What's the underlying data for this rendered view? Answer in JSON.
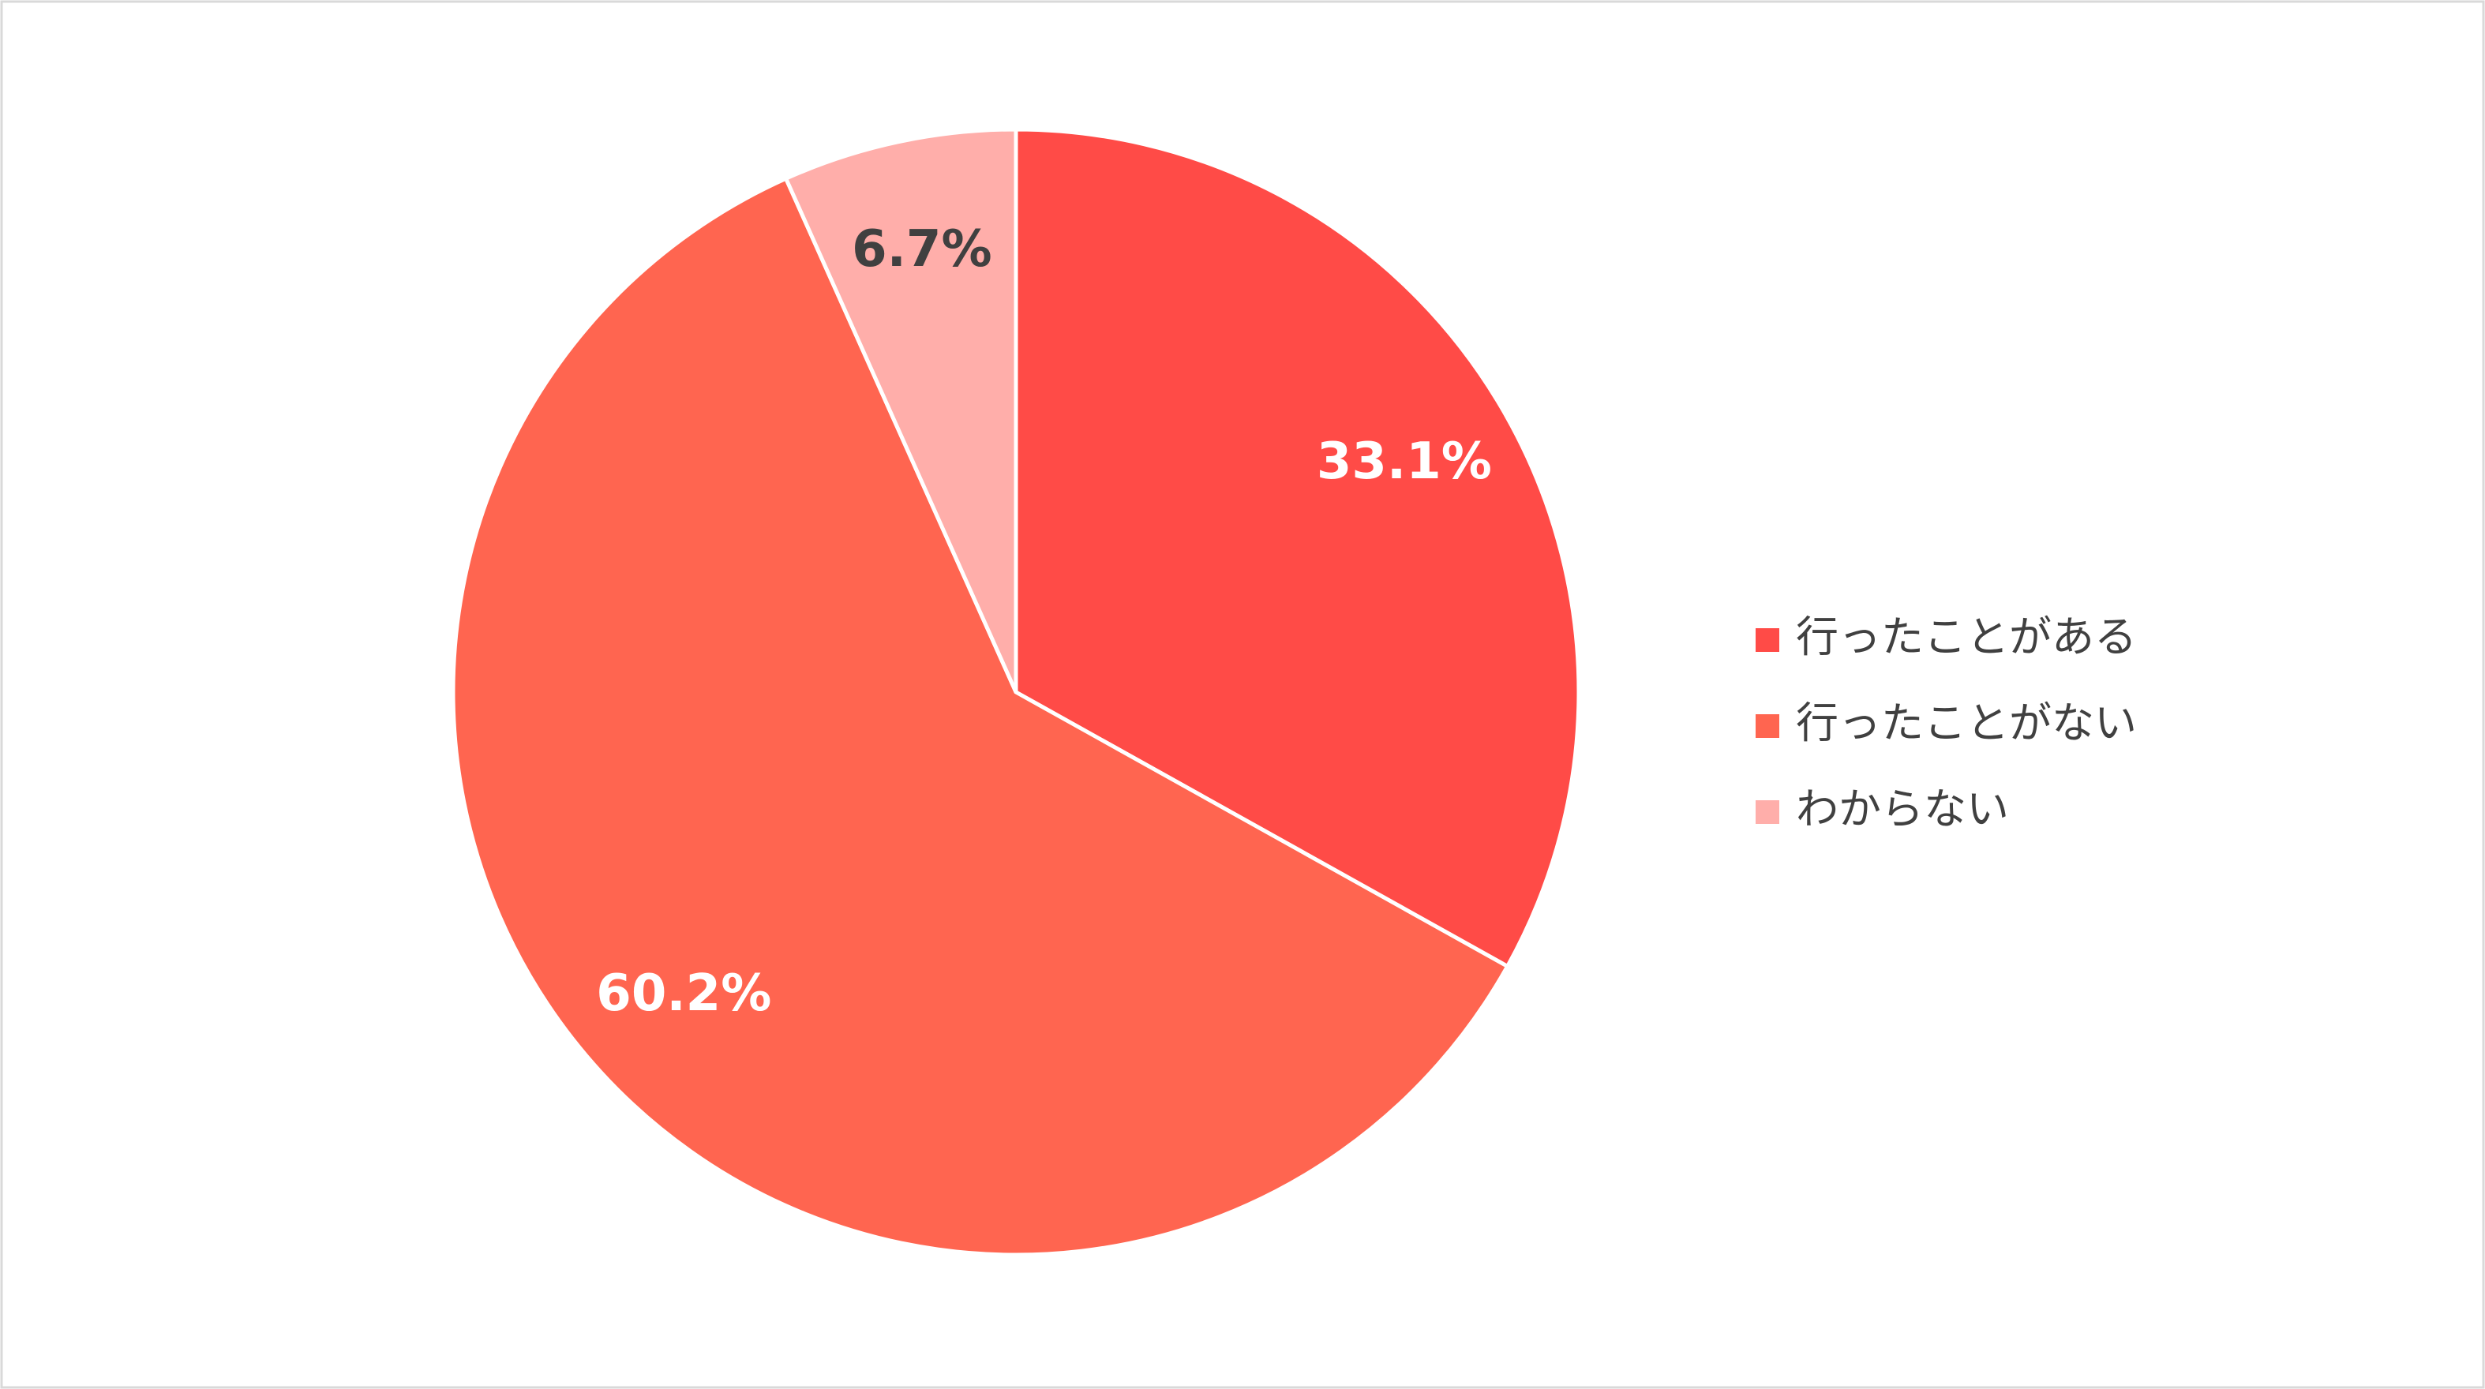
{
  "chart_data": {
    "type": "pie",
    "categories": [
      "行ったことがある",
      "行ったことがない",
      "わからない"
    ],
    "values": [
      33.1,
      60.2,
      6.7
    ],
    "value_labels": [
      "33.1%",
      "60.2%",
      "6.7%"
    ],
    "colors": [
      "#ff4b47",
      "#ff6550",
      "#ffaeaa"
    ],
    "value_label_colors": [
      "#ffffff",
      "#ffffff",
      "#404040"
    ],
    "legend": "right"
  }
}
